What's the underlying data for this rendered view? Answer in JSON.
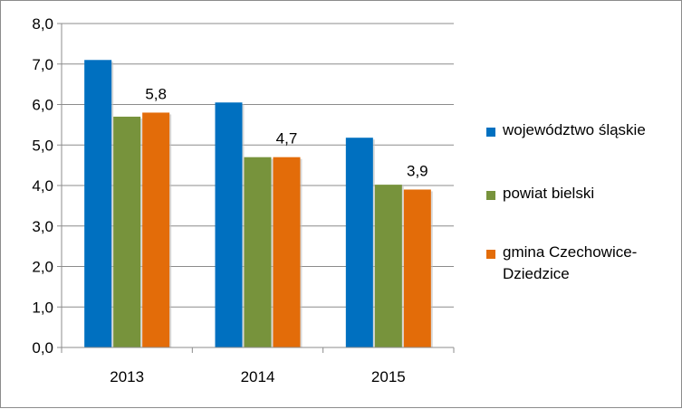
{
  "chart_data": {
    "type": "bar",
    "categories": [
      "2013",
      "2014",
      "2015"
    ],
    "series": [
      {
        "name": "województwo śląskie",
        "color": "#0070C0",
        "values": [
          7.1,
          6.05,
          5.18
        ]
      },
      {
        "name": "powiat bielski",
        "color": "#77933C",
        "values": [
          5.7,
          4.7,
          4.02
        ]
      },
      {
        "name": "gmina Czechowice-Dziedzice",
        "color": "#E36C09",
        "values": [
          5.8,
          4.7,
          3.9
        ]
      }
    ],
    "data_labels": [
      {
        "series": 2,
        "category": 0,
        "text": "5,8"
      },
      {
        "series": 2,
        "category": 1,
        "text": "4,7"
      },
      {
        "series": 2,
        "category": 2,
        "text": "3,9"
      }
    ],
    "yticks": [
      "0,0",
      "1,0",
      "2,0",
      "3,0",
      "4,0",
      "5,0",
      "6,0",
      "7,0",
      "8,0"
    ],
    "ylim": [
      0,
      8
    ],
    "grid": true,
    "legend_position": "right",
    "title": "",
    "xlabel": "",
    "ylabel": ""
  },
  "legend": {
    "items": [
      {
        "label": "województwo śląskie"
      },
      {
        "label": "powiat bielski"
      },
      {
        "label": "gmina Czechowice-\nDziedzice"
      }
    ]
  }
}
